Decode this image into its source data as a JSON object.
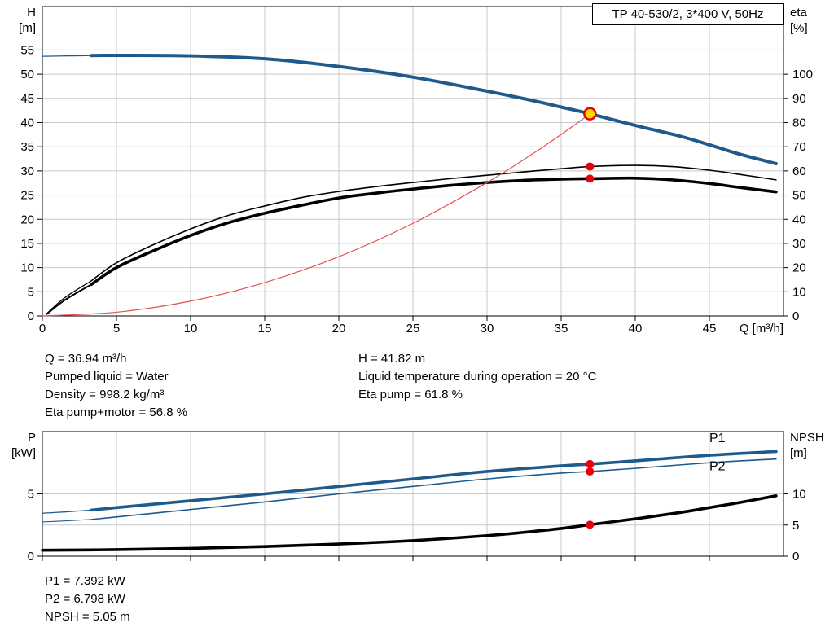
{
  "header": {
    "title_box": "TP 40-530/2, 3*400 V, 50Hz"
  },
  "info": {
    "left": [
      "Q = 36.94 m³/h",
      "Pumped liquid = Water",
      "Density = 998.2 kg/m³",
      "Eta pump+motor = 56.8 %"
    ],
    "right": [
      "H = 41.82 m",
      "Liquid temperature during operation = 20 °C",
      "Eta pump = 61.8 %"
    ],
    "bottom": [
      "P1 = 7.392 kW",
      "P2 = 6.798 kW",
      "NPSH = 5.05 m"
    ]
  },
  "colors": {
    "accent_blue": "#1f5a8d",
    "curve_black": "#000000",
    "system_red": "#e05252",
    "marker_red": "#e8000d",
    "duty_yellow": "#ffd700",
    "grid": "#c8c8c8",
    "axis": "#000000"
  },
  "chart_data": [
    {
      "type": "line",
      "name": "QH and efficiency curves",
      "title": "TP 40-530/2, 3*400 V, 50Hz",
      "xlabel": "Q [m³/h]",
      "ylabel_left": [
        "H",
        "[m]"
      ],
      "ylabel_right": [
        "eta",
        "[%]"
      ],
      "xlim": [
        0,
        50
      ],
      "ylim_left": [
        0,
        64
      ],
      "ylim_right": [
        0,
        128
      ],
      "xticks": [
        0,
        5,
        10,
        15,
        20,
        25,
        30,
        35,
        40,
        45
      ],
      "x_tick_labels": true,
      "yticks_left": [
        0,
        5,
        10,
        15,
        20,
        25,
        30,
        35,
        40,
        45,
        50,
        55
      ],
      "yticks_right": [
        0,
        10,
        20,
        30,
        40,
        50,
        60,
        70,
        80,
        90,
        100
      ],
      "series": [
        {
          "name": "H-lead-in",
          "axis": "left",
          "color": "#1f5a8d",
          "width": 1.3,
          "x": [
            0,
            1,
            2,
            3.3
          ],
          "y": [
            53.7,
            53.75,
            53.8,
            53.85
          ]
        },
        {
          "name": "H-pump-curve",
          "axis": "left",
          "color": "#1f5a8d",
          "width": 4,
          "x": [
            3.3,
            5,
            10,
            15,
            20,
            25,
            30,
            33,
            35,
            36.94,
            40,
            43,
            45,
            47,
            49.5
          ],
          "y": [
            53.85,
            53.9,
            53.8,
            53.2,
            51.6,
            49.4,
            46.5,
            44.6,
            43.2,
            41.82,
            39.4,
            37.2,
            35.4,
            33.5,
            31.5
          ]
        },
        {
          "name": "eta-pump-lead-in",
          "axis": "right",
          "color": "#000000",
          "width": 1.3,
          "x": [
            0.3,
            1.5,
            3.3
          ],
          "y": [
            1,
            7.5,
            14.5
          ]
        },
        {
          "name": "eta-pump",
          "axis": "right",
          "color": "#000000",
          "width": 1.6,
          "x": [
            3.3,
            5,
            7.5,
            10,
            12.5,
            15,
            17.5,
            20,
            22.5,
            25,
            27.5,
            30,
            32.5,
            35,
            36.94,
            40,
            42.5,
            45,
            47,
            49.5
          ],
          "y": [
            14.5,
            22,
            29.5,
            36,
            41.5,
            45.5,
            49,
            51.5,
            53.5,
            55.2,
            56.8,
            58.2,
            59.6,
            60.9,
            61.8,
            62.3,
            61.8,
            60.3,
            58.6,
            56.3
          ]
        },
        {
          "name": "eta-pump-motor-lead-in",
          "axis": "right",
          "color": "#000000",
          "width": 2,
          "x": [
            0.3,
            1.5,
            3.3
          ],
          "y": [
            0.8,
            6.5,
            13
          ]
        },
        {
          "name": "eta-pump-motor",
          "axis": "right",
          "color": "#000000",
          "width": 3.6,
          "x": [
            3.3,
            5,
            7.5,
            10,
            12.5,
            15,
            17.5,
            20,
            22.5,
            25,
            27.5,
            30,
            32.5,
            35,
            36.94,
            40,
            42.5,
            45,
            47,
            49.5
          ],
          "y": [
            13,
            20,
            27,
            33.3,
            38.5,
            42.5,
            45.8,
            48.8,
            50.8,
            52.5,
            54,
            55.2,
            56.1,
            56.6,
            56.8,
            57,
            56.3,
            54.8,
            53.2,
            51.3
          ]
        },
        {
          "name": "system-curve",
          "axis": "left",
          "color": "#e05252",
          "width": 1.2,
          "x": [
            0,
            5,
            10,
            15,
            20,
            25,
            30,
            33,
            35,
            36.94
          ],
          "y": [
            0,
            0.77,
            3.07,
            6.9,
            12.26,
            19.16,
            27.59,
            33.38,
            37.54,
            41.82
          ]
        }
      ],
      "markers": [
        {
          "name": "duty-point",
          "style": "duty",
          "axis": "left",
          "x": 36.94,
          "y": 41.82
        },
        {
          "name": "eta-pump-point",
          "style": "dot",
          "axis": "right",
          "x": 36.94,
          "y": 61.8
        },
        {
          "name": "eta-pump-motor-point",
          "style": "dot",
          "axis": "right",
          "x": 36.94,
          "y": 56.8
        }
      ],
      "annotations": []
    },
    {
      "type": "line",
      "name": "Power and NPSH curves",
      "xlabel": "",
      "ylabel_left": [
        "P",
        "[kW]"
      ],
      "ylabel_right": [
        "NPSH",
        "[m]"
      ],
      "xlim": [
        0,
        50
      ],
      "ylim_left": [
        0,
        10
      ],
      "ylim_right": [
        0,
        20
      ],
      "xticks": [
        0,
        5,
        10,
        15,
        20,
        25,
        30,
        35,
        40,
        45
      ],
      "x_tick_labels": false,
      "yticks_left": [
        0,
        5
      ],
      "yticks_right": [
        0,
        5,
        10
      ],
      "series": [
        {
          "name": "P1-lead-in",
          "axis": "left",
          "color": "#1f5a8d",
          "width": 1.3,
          "x": [
            0,
            1.5,
            3.3
          ],
          "y": [
            3.45,
            3.55,
            3.7
          ]
        },
        {
          "name": "P1",
          "axis": "left",
          "color": "#1f5a8d",
          "width": 3.6,
          "x": [
            3.3,
            5,
            10,
            15,
            20,
            25,
            30,
            35,
            36.94,
            40,
            45,
            49.5
          ],
          "y": [
            3.7,
            3.9,
            4.45,
            5.0,
            5.6,
            6.2,
            6.8,
            7.25,
            7.392,
            7.65,
            8.1,
            8.4
          ]
        },
        {
          "name": "P2-lead-in",
          "axis": "left",
          "color": "#1f5a8d",
          "width": 1.1,
          "x": [
            0,
            1.5,
            3.3
          ],
          "y": [
            2.75,
            2.83,
            2.95
          ]
        },
        {
          "name": "P2",
          "axis": "left",
          "color": "#1f5a8d",
          "width": 1.6,
          "x": [
            3.3,
            5,
            10,
            15,
            20,
            25,
            30,
            35,
            36.94,
            40,
            45,
            49.5
          ],
          "y": [
            2.95,
            3.15,
            3.75,
            4.35,
            5.0,
            5.6,
            6.2,
            6.67,
            6.798,
            7.05,
            7.5,
            7.8
          ]
        },
        {
          "name": "NPSH",
          "axis": "right",
          "color": "#000000",
          "width": 3.6,
          "x": [
            0,
            5,
            10,
            15,
            20,
            25,
            30,
            33,
            35,
            36.94,
            40,
            43,
            45,
            47,
            49.5
          ],
          "y": [
            0.95,
            1.05,
            1.25,
            1.55,
            1.95,
            2.5,
            3.3,
            3.95,
            4.45,
            5.05,
            6.0,
            7.0,
            7.8,
            8.6,
            9.7
          ]
        }
      ],
      "markers": [
        {
          "name": "p1-point",
          "style": "dot",
          "axis": "left",
          "x": 36.94,
          "y": 7.392
        },
        {
          "name": "p2-point",
          "style": "dot",
          "axis": "left",
          "x": 36.94,
          "y": 6.798
        },
        {
          "name": "npsh-point",
          "style": "dot",
          "axis": "right",
          "x": 36.94,
          "y": 5.05
        }
      ],
      "annotations": [
        {
          "text": "P1",
          "x": 45.0,
          "y": 9.15,
          "axis": "left",
          "color": "#1f5a8d"
        },
        {
          "text": "P2",
          "x": 45.0,
          "y": 6.9,
          "axis": "left",
          "color": "#1f5a8d"
        }
      ]
    }
  ]
}
